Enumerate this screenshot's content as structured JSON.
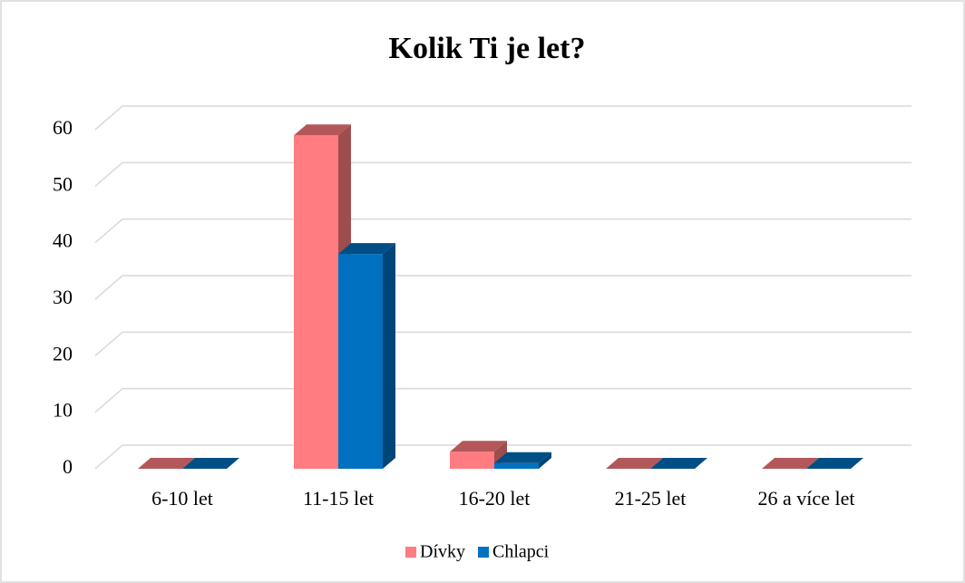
{
  "chart_data": {
    "type": "bar3d",
    "title": "Kolik Ti je let?",
    "categories": [
      "6-10 let",
      "11-15 let",
      "16-20 let",
      "21-25 let",
      "26 a více let"
    ],
    "series": [
      {
        "name": "Dívky",
        "color": "#ff7c80",
        "values": [
          0,
          59,
          3,
          0,
          0
        ]
      },
      {
        "name": "Chlapci",
        "color": "#0070c0",
        "values": [
          0,
          38,
          1,
          0,
          0
        ]
      }
    ],
    "ylim": [
      0,
      60
    ],
    "yticks": [
      0,
      10,
      20,
      30,
      40,
      50,
      60
    ],
    "grid": true
  }
}
